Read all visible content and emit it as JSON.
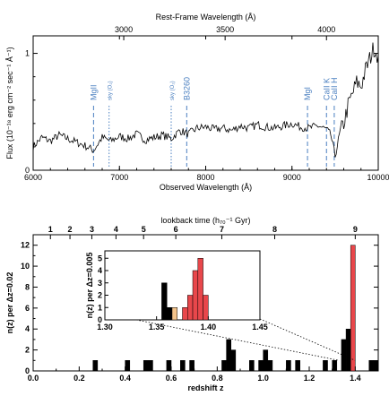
{
  "chart_data": [
    {
      "type": "line",
      "name": "spectrum",
      "xlabel": "Observed Wavelength (Å)",
      "x2label": "Rest-Frame Wavelength (Å)",
      "ylabel": "Flux (10⁻¹⁸ erg cm⁻² sec⁻¹ Å⁻¹)",
      "xlim": [
        6000,
        10000
      ],
      "ylim": [
        0,
        1.15
      ],
      "xticks": [
        "6000",
        "7000",
        "8000",
        "9000",
        "10000"
      ],
      "x2ticks": [
        "3000",
        "3500",
        "4000"
      ],
      "x2tick_values": [
        3000,
        3500,
        4000
      ],
      "x2_to_x_factor": 2.35,
      "yticks": [
        "0",
        "1"
      ],
      "series": [
        {
          "x": [
            6000,
            6100,
            6200,
            6300,
            6400,
            6500,
            6600,
            6700,
            6800,
            6900,
            7000,
            7100,
            7200,
            7300,
            7400,
            7500,
            7600,
            7700,
            7800,
            7900,
            8000,
            8100,
            8200,
            8300,
            8400,
            8500,
            8600,
            8700,
            8800,
            8900,
            9000,
            9100,
            9200,
            9300,
            9400,
            9450,
            9500,
            9550,
            9600,
            9650,
            9700,
            9750,
            9800,
            9850,
            9900,
            9950,
            10000
          ],
          "y": [
            0.2,
            0.28,
            0.25,
            0.3,
            0.27,
            0.24,
            0.21,
            0.17,
            0.28,
            0.25,
            0.29,
            0.27,
            0.31,
            0.26,
            0.28,
            0.3,
            0.27,
            0.34,
            0.31,
            0.36,
            0.37,
            0.35,
            0.36,
            0.34,
            0.38,
            0.36,
            0.39,
            0.37,
            0.36,
            0.38,
            0.4,
            0.37,
            0.36,
            0.38,
            0.35,
            0.3,
            0.12,
            0.3,
            0.4,
            0.55,
            0.65,
            0.75,
            0.72,
            0.85,
            0.95,
            1.05,
            0.98
          ]
        }
      ],
      "annotations": [
        {
          "label": "MgII",
          "x": 6700,
          "style": "dashed"
        },
        {
          "label": "sky (O₂)",
          "x": 6880,
          "style": "dotted"
        },
        {
          "label": "sky (O₂)",
          "x": 7600,
          "style": "dotted"
        },
        {
          "label": "B3260",
          "x": 7780,
          "style": "dashed"
        },
        {
          "label": "MgI",
          "x": 9180,
          "style": "dashed"
        },
        {
          "label": "CaII K",
          "x": 9400,
          "style": "dashed"
        },
        {
          "label": "CaII H",
          "x": 9490,
          "style": "dashed"
        }
      ]
    },
    {
      "type": "bar",
      "name": "redshift-histogram",
      "xlabel": "redshift z",
      "x2label": "lookback time (h₇₀⁻¹ Gyr)",
      "ylabel": "n(z) per Δz=0.02",
      "xlim": [
        0,
        1.5
      ],
      "ylim": [
        0,
        13
      ],
      "bin_width": 0.02,
      "xticks": [
        "0.0",
        "0.2",
        "0.4",
        "0.6",
        "0.8",
        "1.0",
        "1.2",
        "1.4"
      ],
      "yticks": [
        "0",
        "2",
        "4",
        "6",
        "8",
        "10",
        "12"
      ],
      "x2ticks": [
        "1",
        "2",
        "3",
        "4",
        "5",
        "6",
        "7",
        "8",
        "9"
      ],
      "x2tick_z": [
        0.075,
        0.16,
        0.255,
        0.36,
        0.48,
        0.62,
        0.82,
        1.05,
        1.4
      ],
      "bins": [
        {
          "z": 0.26,
          "n": 1,
          "color": "#000000"
        },
        {
          "z": 0.4,
          "n": 1,
          "color": "#000000"
        },
        {
          "z": 0.48,
          "n": 1,
          "color": "#000000"
        },
        {
          "z": 0.5,
          "n": 1,
          "color": "#000000"
        },
        {
          "z": 0.58,
          "n": 1,
          "color": "#000000"
        },
        {
          "z": 0.64,
          "n": 1,
          "color": "#000000"
        },
        {
          "z": 0.68,
          "n": 1,
          "color": "#000000"
        },
        {
          "z": 0.82,
          "n": 1,
          "color": "#000000"
        },
        {
          "z": 0.84,
          "n": 3,
          "color": "#000000"
        },
        {
          "z": 0.86,
          "n": 2,
          "color": "#000000"
        },
        {
          "z": 0.94,
          "n": 1,
          "color": "#000000"
        },
        {
          "z": 0.98,
          "n": 1,
          "color": "#000000"
        },
        {
          "z": 1.0,
          "n": 2,
          "color": "#000000"
        },
        {
          "z": 1.02,
          "n": 1,
          "color": "#000000"
        },
        {
          "z": 1.1,
          "n": 1,
          "color": "#000000"
        },
        {
          "z": 1.14,
          "n": 1,
          "color": "#000000"
        },
        {
          "z": 1.26,
          "n": 1,
          "color": "#000000"
        },
        {
          "z": 1.3,
          "n": 1,
          "color": "#000000"
        },
        {
          "z": 1.34,
          "n": 3,
          "color": "#000000"
        },
        {
          "z": 1.36,
          "n": 4,
          "color": "#000000"
        },
        {
          "z": 1.38,
          "n": 12,
          "color": "#e8474b"
        },
        {
          "z": 1.46,
          "n": 1,
          "color": "#000000"
        },
        {
          "z": 1.48,
          "n": 1,
          "color": "#000000"
        }
      ],
      "inset": {
        "xlabel": "",
        "ylabel": "n(z) per Δz=0.005",
        "xlim": [
          1.3,
          1.45
        ],
        "ylim": [
          0,
          5.6
        ],
        "bin_width": 0.005,
        "xticks": [
          "1.30",
          "1.35",
          "1.40",
          "1.45"
        ],
        "yticks": [
          "0",
          "1",
          "2",
          "3",
          "4",
          "5"
        ],
        "bins": [
          {
            "z": 1.355,
            "n": 3,
            "color": "#000000"
          },
          {
            "z": 1.36,
            "n": 1,
            "color": "#000000"
          },
          {
            "z": 1.365,
            "n": 1,
            "color": "#f3c38a"
          },
          {
            "z": 1.375,
            "n": 1,
            "color": "#e8474b"
          },
          {
            "z": 1.38,
            "n": 2,
            "color": "#e8474b"
          },
          {
            "z": 1.385,
            "n": 4,
            "color": "#e8474b"
          },
          {
            "z": 1.39,
            "n": 5,
            "color": "#e8474b"
          },
          {
            "z": 1.395,
            "n": 2,
            "color": "#e8474b"
          }
        ]
      }
    }
  ]
}
